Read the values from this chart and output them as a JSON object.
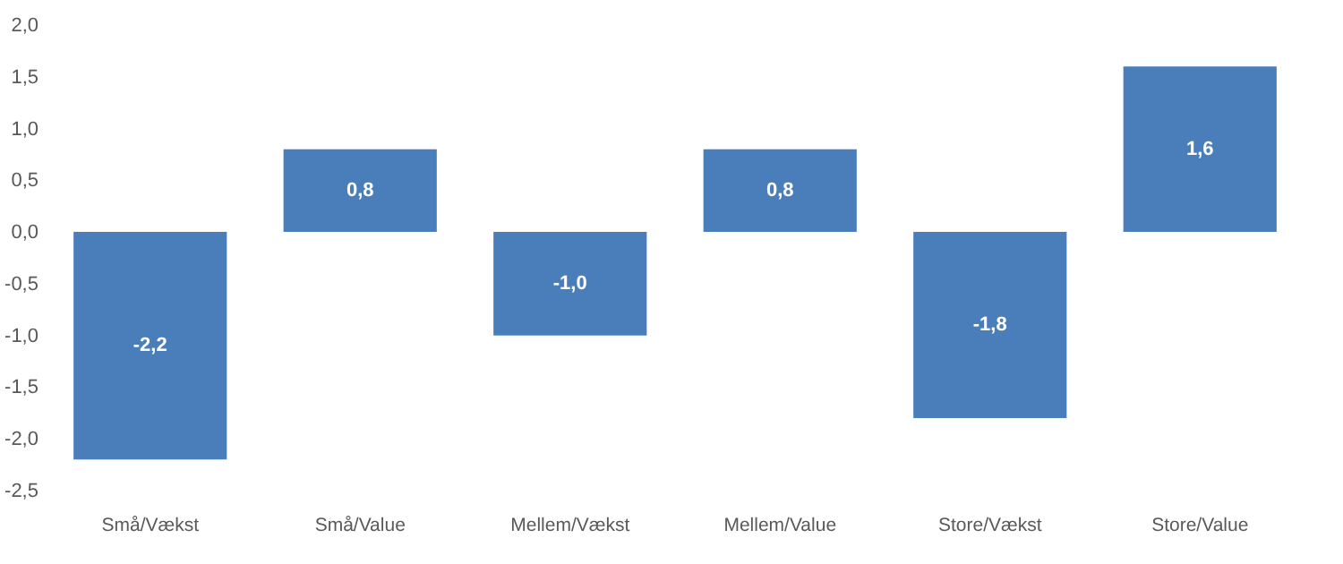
{
  "chart_data": {
    "type": "bar",
    "categories": [
      "Små/Vækst",
      "Små/Value",
      "Mellem/Vækst",
      "Mellem/Value",
      "Store/Vækst",
      "Store/Value"
    ],
    "values": [
      -2.2,
      0.8,
      -1.0,
      0.8,
      -1.8,
      1.6
    ],
    "color": "#4a7ebb",
    "value_labels": [
      "-2,2",
      "0,8",
      "-1,0",
      "0,8",
      "-1,8",
      "1,6"
    ],
    "ylim": [
      -2.5,
      2.0
    ],
    "yticks": [
      {
        "value": -2.5,
        "label": "-2,5"
      },
      {
        "value": -2.0,
        "label": "-2,0"
      },
      {
        "value": -1.5,
        "label": "-1,5"
      },
      {
        "value": -1.0,
        "label": "-1,0"
      },
      {
        "value": -0.5,
        "label": "-0,5"
      },
      {
        "value": 0,
        "label": "0,0"
      },
      {
        "value": 0.5,
        "label": "0,5"
      },
      {
        "value": 1.0,
        "label": "1,0"
      },
      {
        "value": 1.5,
        "label": "1,5"
      },
      {
        "value": 2.0,
        "label": "2,0"
      }
    ],
    "grid": false
  }
}
